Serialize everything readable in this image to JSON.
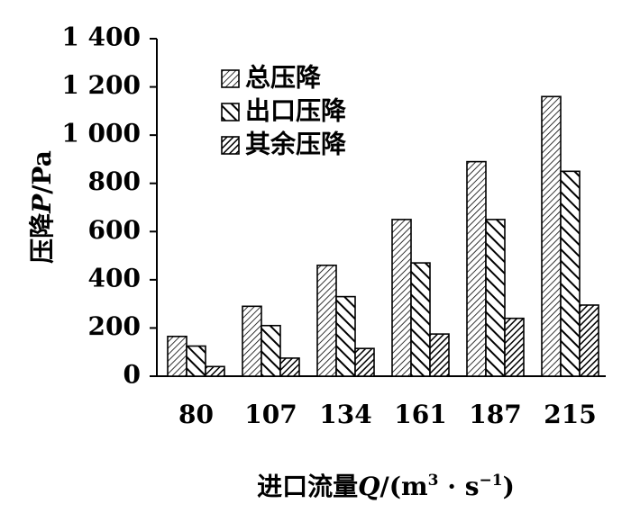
{
  "chart_data": {
    "type": "bar",
    "categories": [
      "80",
      "107",
      "134",
      "161",
      "187",
      "215"
    ],
    "series": [
      {
        "name": "总压降",
        "values": [
          165,
          290,
          460,
          650,
          890,
          1160
        ],
        "pattern": "diag-right"
      },
      {
        "name": "出口压降",
        "values": [
          125,
          210,
          330,
          470,
          650,
          850
        ],
        "pattern": "diag-left"
      },
      {
        "name": "其余压降",
        "values": [
          40,
          75,
          115,
          175,
          240,
          295
        ],
        "pattern": "diag-dense"
      }
    ],
    "yticks": [
      "0",
      "200",
      "400",
      "600",
      "800",
      "1 000",
      "1 200",
      "1 400"
    ],
    "ylim": [
      0,
      1400
    ],
    "ylabel": {
      "main": "压降",
      "var": "P",
      "unit": "/Pa"
    },
    "xlabel": {
      "main": "进口流量",
      "var": "Q",
      "unit_open": "/(m",
      "sup1": "3",
      "dot": " · s",
      "sup2": "−1",
      "unit_close": ")"
    },
    "legend_position": "top-left",
    "grid": false
  }
}
